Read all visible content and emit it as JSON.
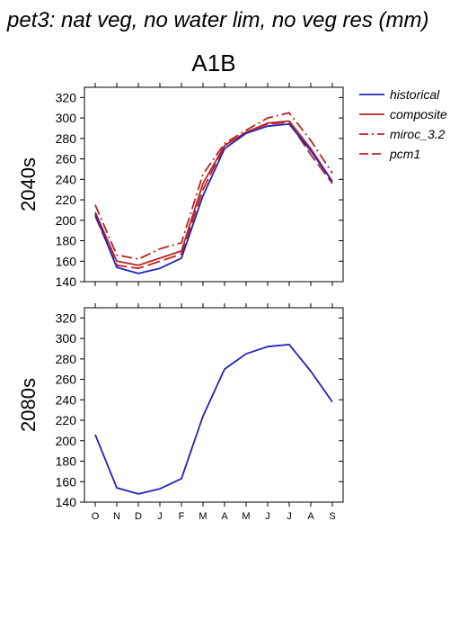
{
  "page": {
    "title": "pet3: nat veg, no water lim, no veg res (mm)",
    "scenario": "A1B"
  },
  "chart_data": [
    {
      "type": "line",
      "panel_label": "2040s",
      "categories": [
        "O",
        "N",
        "D",
        "J",
        "F",
        "M",
        "A",
        "M",
        "J",
        "J",
        "A",
        "S"
      ],
      "ylim": [
        140,
        330
      ],
      "yticks": [
        140,
        160,
        180,
        200,
        220,
        240,
        260,
        280,
        300,
        320
      ],
      "grid": false,
      "legend_position": "right",
      "series": [
        {
          "name": "historical",
          "color": "#2222bb",
          "dash": "solid",
          "values": [
            206,
            154,
            148,
            153,
            163,
            224,
            270,
            285,
            292,
            294,
            268,
            238
          ]
        },
        {
          "name": "composite",
          "color": "#bb2222",
          "dash": "solid",
          "values": [
            208,
            160,
            156,
            163,
            170,
            236,
            273,
            286,
            295,
            297,
            270,
            238
          ]
        },
        {
          "name": "miroc_3.2",
          "color": "#bb2222",
          "dash": "dashdot",
          "values": [
            215,
            166,
            162,
            172,
            178,
            245,
            275,
            288,
            300,
            305,
            278,
            246
          ]
        },
        {
          "name": "pcm1",
          "color": "#bb2222",
          "dash": "dash",
          "values": [
            204,
            156,
            153,
            160,
            167,
            230,
            273,
            286,
            294,
            296,
            264,
            236
          ]
        }
      ]
    },
    {
      "type": "line",
      "panel_label": "2080s",
      "categories": [
        "O",
        "N",
        "D",
        "J",
        "F",
        "M",
        "A",
        "M",
        "J",
        "J",
        "A",
        "S"
      ],
      "ylim": [
        140,
        330
      ],
      "yticks": [
        140,
        160,
        180,
        200,
        220,
        240,
        260,
        280,
        300,
        320
      ],
      "grid": false,
      "series": [
        {
          "name": "historical",
          "color": "#2222bb",
          "dash": "solid",
          "values": [
            206,
            154,
            148,
            153,
            163,
            224,
            270,
            285,
            292,
            294,
            268,
            238
          ]
        }
      ]
    }
  ]
}
